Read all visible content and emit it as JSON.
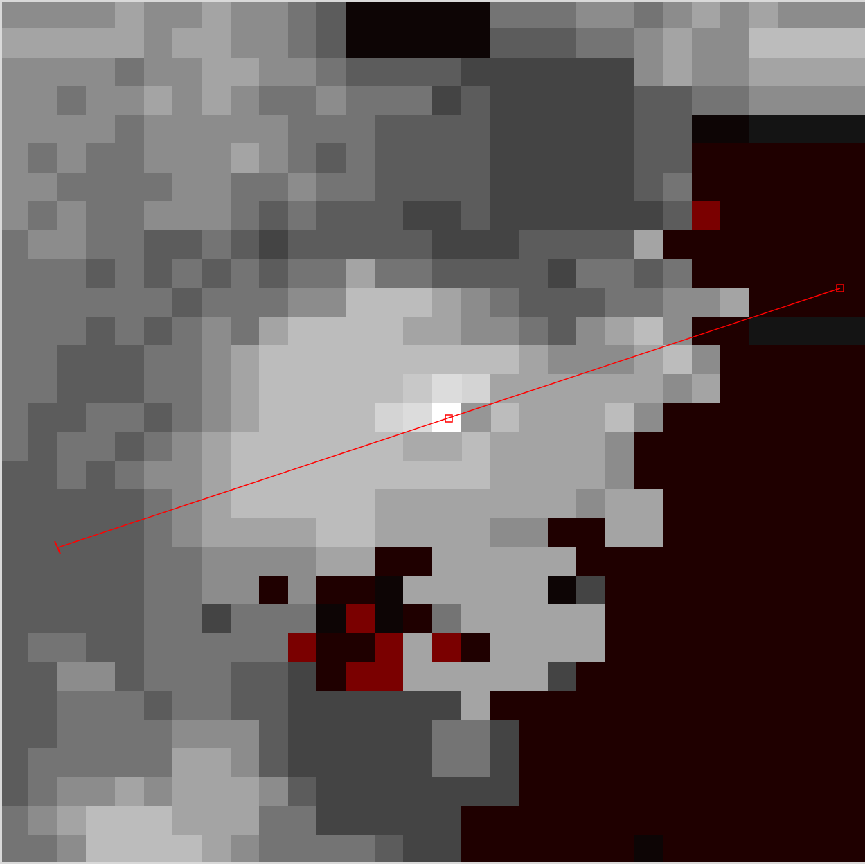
{
  "image": {
    "kind": "pixelated-grayscale-heatmap",
    "grid_cols": 30,
    "grid_rows": 30,
    "colors": {
      "background_gray": "#6a6a6a",
      "dark_red": "#1f0000",
      "bright_red": "#7a0000",
      "highlight_white": "#ffffff",
      "frame": "#d9d9d9"
    }
  },
  "annotation": {
    "kind": "line-profile",
    "color": "#ff0000",
    "markers": [
      "start-tick",
      "center-square",
      "end-square"
    ]
  }
}
